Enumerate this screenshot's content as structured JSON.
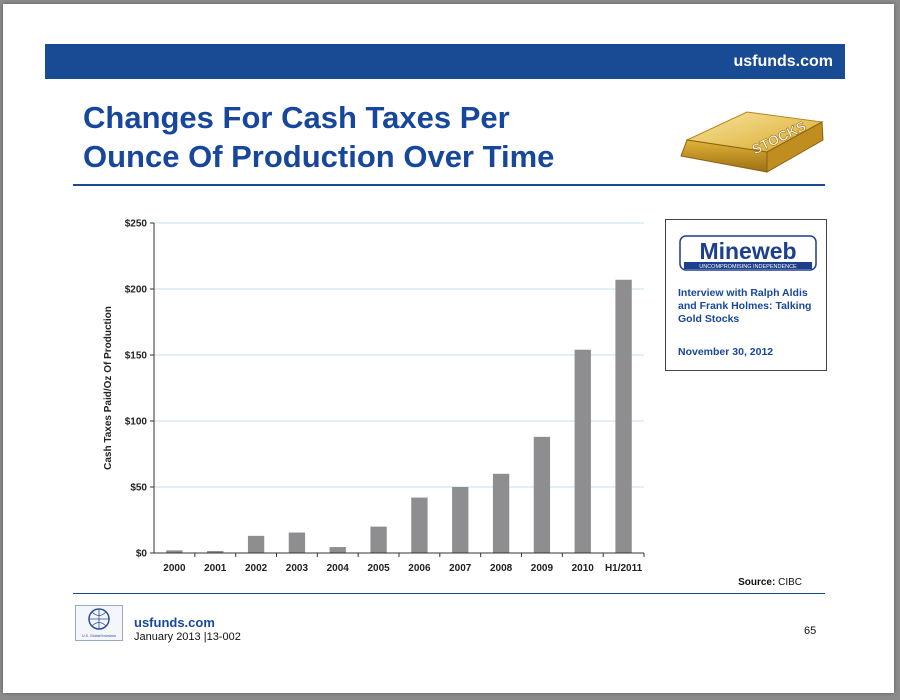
{
  "header": {
    "site": "usfunds.com"
  },
  "title": {
    "line1": "Changes For Cash Taxes Per",
    "line2": "Ounce Of Production Over Time"
  },
  "badge": {
    "text": "STOCKS"
  },
  "info_box": {
    "logo_text": "Mineweb",
    "logo_tagline": "UNCOMPROMISING INDEPENDENCE",
    "description": "Interview with Ralph Aldis and Frank Holmes: Talking Gold Stocks",
    "date": "November 30, 2012"
  },
  "source": {
    "label": "Source:",
    "value": "CIBC"
  },
  "footer": {
    "logo_text": "U.S. Global Investors",
    "site": "usfunds.com",
    "date_code": "January 2013 |13-002",
    "page_number": "65"
  },
  "colors": {
    "brand_blue": "#194a94",
    "bar_gray": "#8e8e91",
    "grid": "#bfe3ee"
  },
  "chart_data": {
    "type": "bar",
    "title": "",
    "xlabel": "",
    "ylabel": "Cash Taxes Paid/Oz Of Production",
    "categories": [
      "2000",
      "2001",
      "2002",
      "2003",
      "2004",
      "2005",
      "2006",
      "2007",
      "2008",
      "2009",
      "2010",
      "H1/2011"
    ],
    "values": [
      2,
      1.5,
      13,
      15.5,
      4.5,
      20,
      42,
      50,
      60,
      88,
      154,
      207
    ],
    "ylim": [
      0,
      250
    ],
    "yticks": [
      0,
      50,
      100,
      150,
      200,
      250
    ],
    "ytick_labels": [
      "$0",
      "$50",
      "$100",
      "$150",
      "$200",
      "$250"
    ],
    "grid": true,
    "legend": "none"
  }
}
